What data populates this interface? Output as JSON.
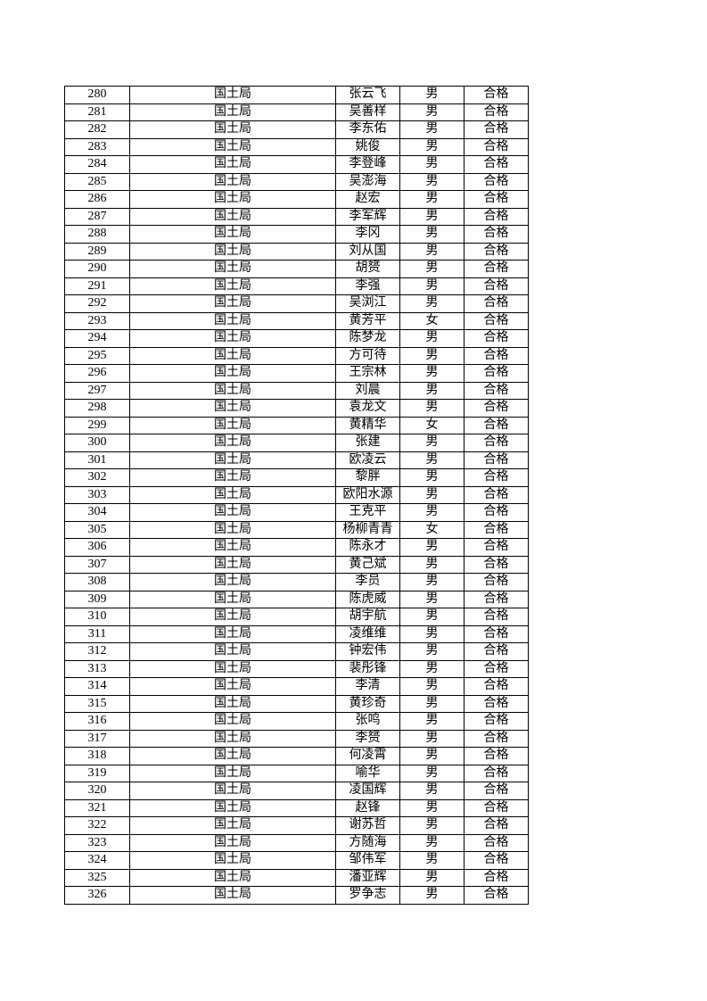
{
  "table": {
    "rows": [
      [
        "280",
        "国土局",
        "张云飞",
        "男",
        "合格"
      ],
      [
        "281",
        "国土局",
        "吴善样",
        "男",
        "合格"
      ],
      [
        "282",
        "国土局",
        "李东佑",
        "男",
        "合格"
      ],
      [
        "283",
        "国土局",
        "姚俊",
        "男",
        "合格"
      ],
      [
        "284",
        "国土局",
        "李登峰",
        "男",
        "合格"
      ],
      [
        "285",
        "国土局",
        "吴澎海",
        "男",
        "合格"
      ],
      [
        "286",
        "国土局",
        "赵宏",
        "男",
        "合格"
      ],
      [
        "287",
        "国土局",
        "李军辉",
        "男",
        "合格"
      ],
      [
        "288",
        "国土局",
        "李冈",
        "男",
        "合格"
      ],
      [
        "289",
        "国土局",
        "刘从国",
        "男",
        "合格"
      ],
      [
        "290",
        "国土局",
        "胡赟",
        "男",
        "合格"
      ],
      [
        "291",
        "国土局",
        "李强",
        "男",
        "合格"
      ],
      [
        "292",
        "国土局",
        "吴浏江",
        "男",
        "合格"
      ],
      [
        "293",
        "国土局",
        "黄芳平",
        "女",
        "合格"
      ],
      [
        "294",
        "国土局",
        "陈梦龙",
        "男",
        "合格"
      ],
      [
        "295",
        "国土局",
        "方可待",
        "男",
        "合格"
      ],
      [
        "296",
        "国土局",
        "王宗林",
        "男",
        "合格"
      ],
      [
        "297",
        "国土局",
        "刘晨",
        "男",
        "合格"
      ],
      [
        "298",
        "国土局",
        "袁龙文",
        "男",
        "合格"
      ],
      [
        "299",
        "国土局",
        "黄精华",
        "女",
        "合格"
      ],
      [
        "300",
        "国土局",
        "张建",
        "男",
        "合格"
      ],
      [
        "301",
        "国土局",
        "欧凌云",
        "男",
        "合格"
      ],
      [
        "302",
        "国土局",
        "黎胖",
        "男",
        "合格"
      ],
      [
        "303",
        "国土局",
        "欧阳水源",
        "男",
        "合格"
      ],
      [
        "304",
        "国土局",
        "王克平",
        "男",
        "合格"
      ],
      [
        "305",
        "国土局",
        "杨柳青青",
        "女",
        "合格"
      ],
      [
        "306",
        "国土局",
        "陈永才",
        "男",
        "合格"
      ],
      [
        "307",
        "国土局",
        "黄己斌",
        "男",
        "合格"
      ],
      [
        "308",
        "国土局",
        "李员",
        "男",
        "合格"
      ],
      [
        "309",
        "国土局",
        "陈虎威",
        "男",
        "合格"
      ],
      [
        "310",
        "国土局",
        "胡宇航",
        "男",
        "合格"
      ],
      [
        "311",
        "国土局",
        "凌维维",
        "男",
        "合格"
      ],
      [
        "312",
        "国土局",
        "钟宏伟",
        "男",
        "合格"
      ],
      [
        "313",
        "国土局",
        "裴彤锋",
        "男",
        "合格"
      ],
      [
        "314",
        "国土局",
        "李清",
        "男",
        "合格"
      ],
      [
        "315",
        "国土局",
        "黄珍奇",
        "男",
        "合格"
      ],
      [
        "316",
        "国土局",
        "张鸣",
        "男",
        "合格"
      ],
      [
        "317",
        "国土局",
        "李赟",
        "男",
        "合格"
      ],
      [
        "318",
        "国土局",
        "何凌霄",
        "男",
        "合格"
      ],
      [
        "319",
        "国土局",
        "喻华",
        "男",
        "合格"
      ],
      [
        "320",
        "国土局",
        "凌国辉",
        "男",
        "合格"
      ],
      [
        "321",
        "国土局",
        "赵锋",
        "男",
        "合格"
      ],
      [
        "322",
        "国土局",
        "谢苏哲",
        "男",
        "合格"
      ],
      [
        "323",
        "国土局",
        "方随海",
        "男",
        "合格"
      ],
      [
        "324",
        "国土局",
        "邹伟军",
        "男",
        "合格"
      ],
      [
        "325",
        "国土局",
        "潘亚辉",
        "男",
        "合格"
      ],
      [
        "326",
        "国土局",
        "罗争志",
        "男",
        "合格"
      ]
    ]
  }
}
